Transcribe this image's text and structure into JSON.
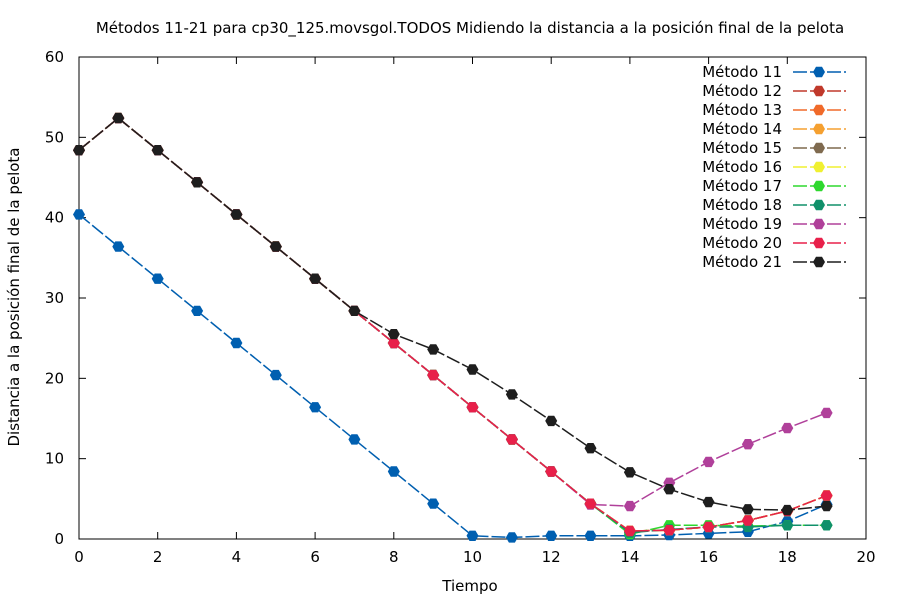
{
  "chart_data": {
    "type": "line",
    "title": "Métodos 11-21 para cp30_125.movsgol.TODOS Midiendo la distancia a la posición final de la pelota",
    "xlabel": "Tiempo",
    "ylabel": "Distancia a la posición final de la pelota",
    "xlim": [
      0,
      20
    ],
    "ylim": [
      0,
      60
    ],
    "xticks": [
      0,
      2,
      4,
      6,
      8,
      10,
      12,
      14,
      16,
      18,
      20
    ],
    "yticks": [
      0,
      10,
      20,
      30,
      40,
      50,
      60
    ],
    "grid": false,
    "legend_position": "top-right",
    "x": [
      0,
      1,
      2,
      3,
      4,
      5,
      6,
      7,
      8,
      9,
      10,
      11,
      12,
      13,
      14,
      15,
      16,
      17,
      18,
      19
    ],
    "series": [
      {
        "name": "Método 11",
        "color": "#005fb0",
        "values": [
          40.4,
          36.4,
          32.4,
          28.4,
          24.4,
          20.4,
          16.4,
          12.4,
          8.4,
          4.4,
          0.4,
          0.2,
          0.4,
          0.4,
          0.4,
          0.5,
          0.7,
          0.9,
          2.2,
          4.3
        ]
      },
      {
        "name": "Método 12",
        "color": "#c0392b",
        "values": [
          48.4,
          52.4,
          48.4,
          44.4,
          40.4,
          36.4,
          32.4,
          28.4,
          24.4,
          20.4,
          16.4,
          12.4,
          8.4,
          4.4,
          1.0,
          1.1,
          1.5,
          2.3,
          3.5,
          5.4
        ]
      },
      {
        "name": "Método 13",
        "color": "#f06a2a",
        "values": [
          48.4,
          52.4,
          48.4,
          44.4,
          40.4,
          36.4,
          32.4,
          28.4,
          24.4,
          20.4,
          16.4,
          12.4,
          8.4,
          4.4,
          1.0,
          1.1,
          1.5,
          2.3,
          3.5,
          5.4
        ]
      },
      {
        "name": "Método 14",
        "color": "#f5a030",
        "values": [
          48.4,
          52.4,
          48.4,
          44.4,
          40.4,
          36.4,
          32.4,
          28.4,
          24.4,
          20.4,
          16.4,
          12.4,
          8.4,
          4.4,
          1.0,
          1.1,
          1.5,
          2.3,
          3.5,
          5.4
        ]
      },
      {
        "name": "Método 15",
        "color": "#7f6a4f",
        "values": [
          48.4,
          52.4,
          48.4,
          44.4,
          40.4,
          36.4,
          32.4,
          28.4,
          24.4,
          20.4,
          16.4,
          12.4,
          8.4,
          4.4,
          1.0,
          1.1,
          1.5,
          2.3,
          3.5,
          5.4
        ]
      },
      {
        "name": "Método 16",
        "color": "#f0f030",
        "values": [
          48.4,
          52.4,
          48.4,
          44.4,
          40.4,
          36.4,
          32.4,
          28.4,
          24.4,
          20.4,
          16.4,
          12.4,
          8.4,
          4.4,
          1.0,
          1.1,
          1.5,
          2.3,
          3.5,
          5.4
        ]
      },
      {
        "name": "Método 17",
        "color": "#2ed82e",
        "values": [
          48.4,
          52.4,
          48.4,
          44.4,
          40.4,
          36.4,
          32.4,
          28.4,
          24.4,
          20.4,
          16.4,
          12.4,
          8.4,
          4.4,
          0.6,
          1.7,
          1.7,
          1.6,
          1.7,
          1.7
        ]
      },
      {
        "name": "Método 18",
        "color": "#10906a",
        "values": [
          48.4,
          52.4,
          48.4,
          44.4,
          40.4,
          36.4,
          32.4,
          28.4,
          24.4,
          20.4,
          16.4,
          12.4,
          8.4,
          4.4,
          0.8,
          1.2,
          1.5,
          1.5,
          1.7,
          1.7
        ]
      },
      {
        "name": "Método 19",
        "color": "#b0409a",
        "values": [
          48.4,
          52.4,
          48.4,
          44.4,
          40.4,
          36.4,
          32.4,
          28.4,
          24.4,
          20.4,
          16.4,
          12.4,
          8.4,
          4.3,
          4.1,
          7.0,
          9.6,
          11.8,
          13.8,
          15.7
        ]
      },
      {
        "name": "Método 20",
        "color": "#e8204a",
        "values": [
          48.4,
          52.4,
          48.4,
          44.4,
          40.4,
          36.4,
          32.4,
          28.4,
          24.4,
          20.4,
          16.4,
          12.4,
          8.4,
          4.4,
          1.0,
          1.1,
          1.5,
          2.3,
          3.5,
          5.4
        ]
      },
      {
        "name": "Método 21",
        "color": "#1e1e1e",
        "values": [
          48.4,
          52.4,
          48.4,
          44.4,
          40.4,
          36.4,
          32.4,
          28.4,
          25.5,
          23.6,
          21.1,
          18.0,
          14.7,
          11.3,
          8.3,
          6.2,
          4.6,
          3.7,
          3.6,
          4.1
        ]
      }
    ]
  }
}
